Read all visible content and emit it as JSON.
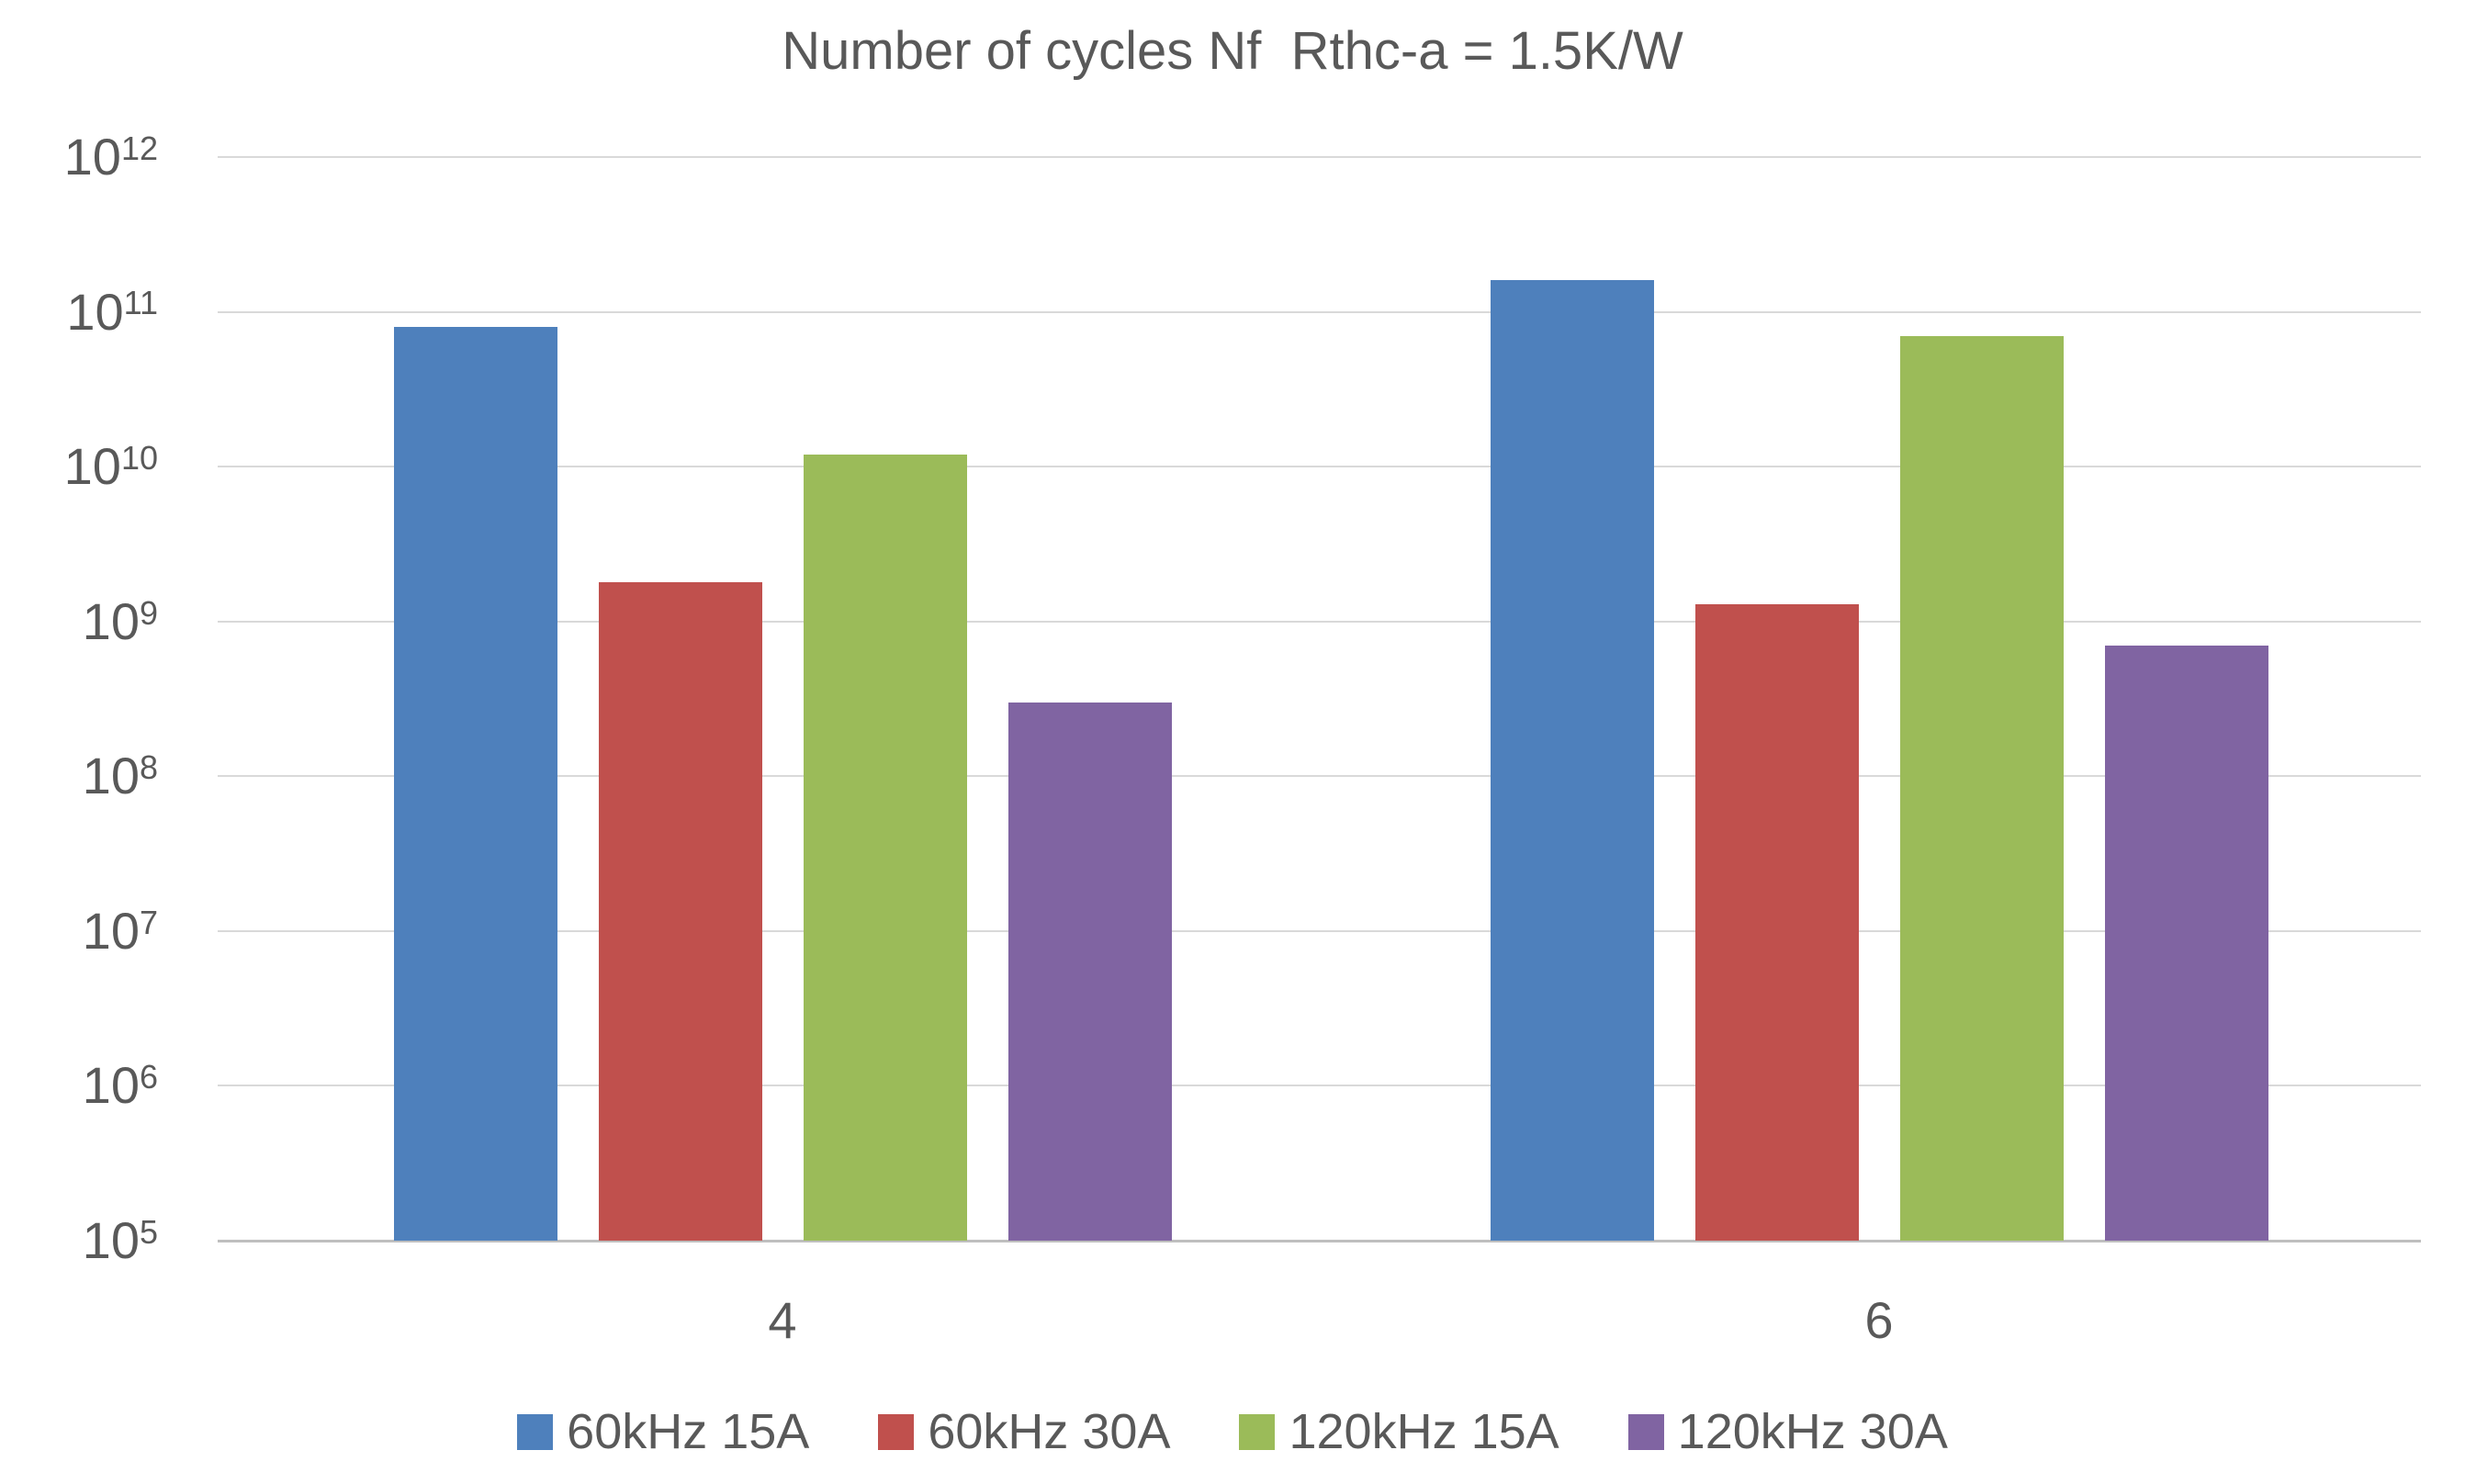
{
  "title": "Number of cycles Nf  Rthc-a = 1.5K/W",
  "colors": {
    "text": "#595959",
    "gridline": "#d9d9d9",
    "axis_line": "#bfbfbf",
    "background": "#ffffff",
    "series_blue": "#4e80bc",
    "series_red": "#c0504d",
    "series_green": "#9bbb59",
    "series_purple": "#8064a2"
  },
  "chart_data": {
    "type": "bar",
    "title": "Number of cycles Nf  Rthc-a = 1.5K/W",
    "xlabel": "",
    "ylabel": "",
    "y_scale": "log",
    "ylim": [
      100000.0,
      1000000000000.0
    ],
    "grid": true,
    "legend_position": "bottom",
    "y_tick_base": "10",
    "y_tick_exponents": [
      "12",
      "11",
      "10",
      "9",
      "8",
      "7",
      "6",
      "5"
    ],
    "categories": [
      "4",
      "6"
    ],
    "series": [
      {
        "name": "60kHz 15A",
        "color": "#4e80bc",
        "values": [
          80000000000.0,
          160000000000.0
        ]
      },
      {
        "name": "60kHz 30A",
        "color": "#c0504d",
        "values": [
          1800000000.0,
          1300000000.0
        ]
      },
      {
        "name": "120kHz 15A",
        "color": "#9bbb59",
        "values": [
          12000000000.0,
          70000000000.0
        ]
      },
      {
        "name": "120kHz 30A",
        "color": "#8064a2",
        "values": [
          300000000.0,
          700000000.0
        ]
      }
    ]
  }
}
